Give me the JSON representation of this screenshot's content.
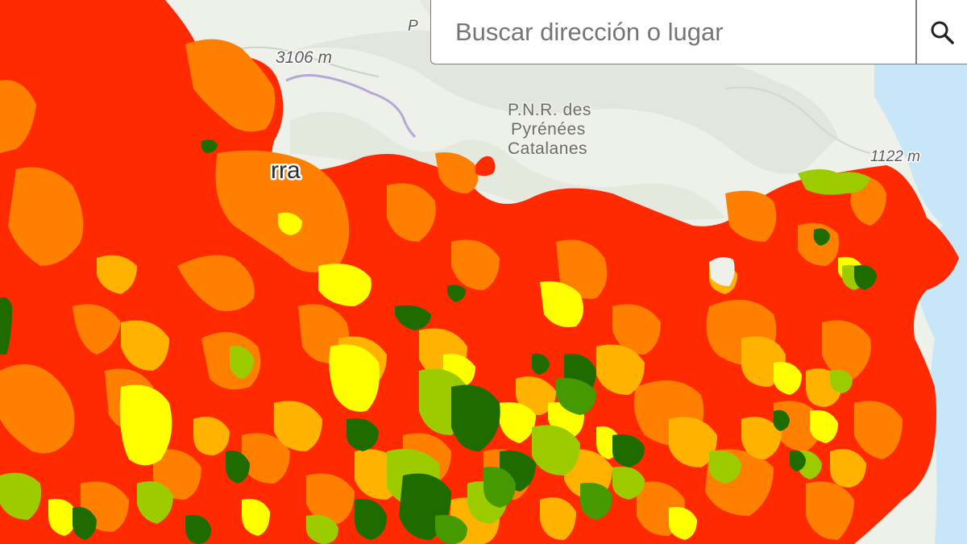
{
  "search": {
    "placeholder": "Buscar dirección o lugar",
    "button_icon": "search-icon"
  },
  "map": {
    "labels": {
      "peak_west": "3106 m",
      "peak_east": "1122 m",
      "peak_partial": "P",
      "park_line1": "P.N.R. des",
      "park_line2": "Pyrénées",
      "park_line3": "Catalanes",
      "city_partial": "rra"
    },
    "legend_colors": {
      "very_high": "#ff2a00",
      "high": "#ff7f00",
      "medium_high": "#ffb300",
      "medium": "#ffff00",
      "low": "#9ccc00",
      "very_low_light": "#449a00",
      "very_low": "#1e6b00"
    },
    "water_color": "#c7e6f7",
    "land_color": "#eef0ea",
    "border_color": "#b7a7d6"
  }
}
